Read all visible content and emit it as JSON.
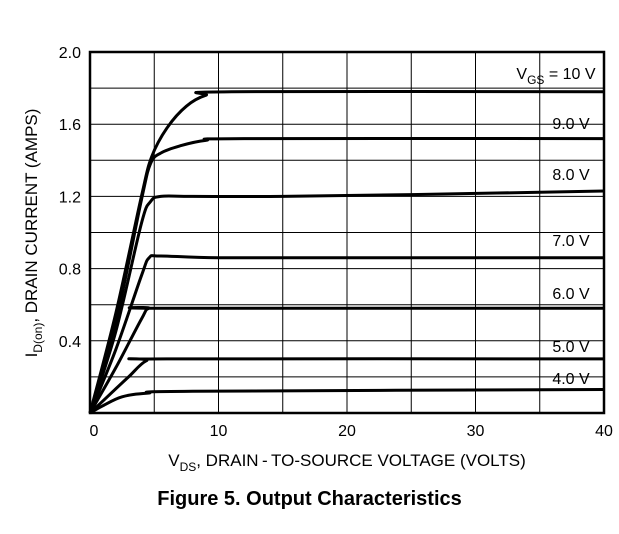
{
  "chart_data": {
    "type": "line",
    "caption": "Figure 5. Output Characteristics",
    "xlabel": {
      "main": "V",
      "sub": "DS",
      "rest": ", DRAIN - TO-SOURCE VOLTAGE (VOLTS)"
    },
    "ylabel": {
      "main": "I",
      "sub": "D(on)",
      "rest": ", DRAIN CURRENT (AMPS)"
    },
    "xlim": [
      0,
      40
    ],
    "ylim": [
      0,
      2.0
    ],
    "x_ticks": [
      0,
      10,
      20,
      30,
      40
    ],
    "x_tick_labels": [
      "0",
      "10",
      "20",
      "30",
      "40"
    ],
    "y_ticks": [
      0.4,
      0.8,
      1.2,
      1.6,
      2.0
    ],
    "y_tick_labels": [
      "0.4",
      "0.8",
      "1.2",
      "1.6",
      "2.0"
    ],
    "grid": true,
    "series": [
      {
        "name": "10 V",
        "label": "V_GS = 10 V",
        "label_parts": {
          "main": "V",
          "sub": "GS",
          "rest": " = 10 V"
        },
        "points": [
          [
            0,
            0
          ],
          [
            2,
            0.55
          ],
          [
            4,
            1.2
          ],
          [
            4.8,
            1.42
          ],
          [
            6,
            1.58
          ],
          [
            7.5,
            1.7
          ],
          [
            9,
            1.76
          ],
          [
            11,
            1.78
          ],
          [
            40,
            1.78
          ]
        ]
      },
      {
        "name": "9.0 V",
        "label": "9.0 V",
        "points": [
          [
            0,
            0
          ],
          [
            2,
            0.5
          ],
          [
            4,
            1.18
          ],
          [
            4.7,
            1.38
          ],
          [
            5.5,
            1.44
          ],
          [
            7,
            1.48
          ],
          [
            9,
            1.51
          ],
          [
            12,
            1.52
          ],
          [
            40,
            1.52
          ]
        ]
      },
      {
        "name": "8.0 V",
        "label": "8.0 V",
        "points": [
          [
            0,
            0
          ],
          [
            2,
            0.45
          ],
          [
            4,
            1.05
          ],
          [
            4.7,
            1.17
          ],
          [
            5.5,
            1.2
          ],
          [
            8,
            1.2
          ],
          [
            15,
            1.2
          ],
          [
            25,
            1.21
          ],
          [
            40,
            1.23
          ]
        ]
      },
      {
        "name": "7.0 V",
        "label": "7.0 V",
        "points": [
          [
            0,
            0
          ],
          [
            2,
            0.35
          ],
          [
            4,
            0.76
          ],
          [
            4.6,
            0.86
          ],
          [
            5.5,
            0.87
          ],
          [
            10,
            0.86
          ],
          [
            20,
            0.86
          ],
          [
            40,
            0.86
          ]
        ]
      },
      {
        "name": "6.0 V",
        "label": "6.0 V",
        "points": [
          [
            0,
            0
          ],
          [
            2,
            0.25
          ],
          [
            4,
            0.52
          ],
          [
            4.6,
            0.58
          ],
          [
            6,
            0.58
          ],
          [
            40,
            0.58
          ]
        ]
      },
      {
        "name": "5.0 V",
        "label": "5.0 V",
        "points": [
          [
            0,
            0
          ],
          [
            1.5,
            0.1
          ],
          [
            3,
            0.2
          ],
          [
            4.4,
            0.29
          ],
          [
            6,
            0.3
          ],
          [
            40,
            0.3
          ]
        ]
      },
      {
        "name": "4.0 V",
        "label": "4.0 V",
        "points": [
          [
            0,
            0
          ],
          [
            1,
            0.04
          ],
          [
            2.5,
            0.09
          ],
          [
            4.5,
            0.11
          ],
          [
            8,
            0.12
          ],
          [
            40,
            0.13
          ]
        ]
      }
    ]
  }
}
